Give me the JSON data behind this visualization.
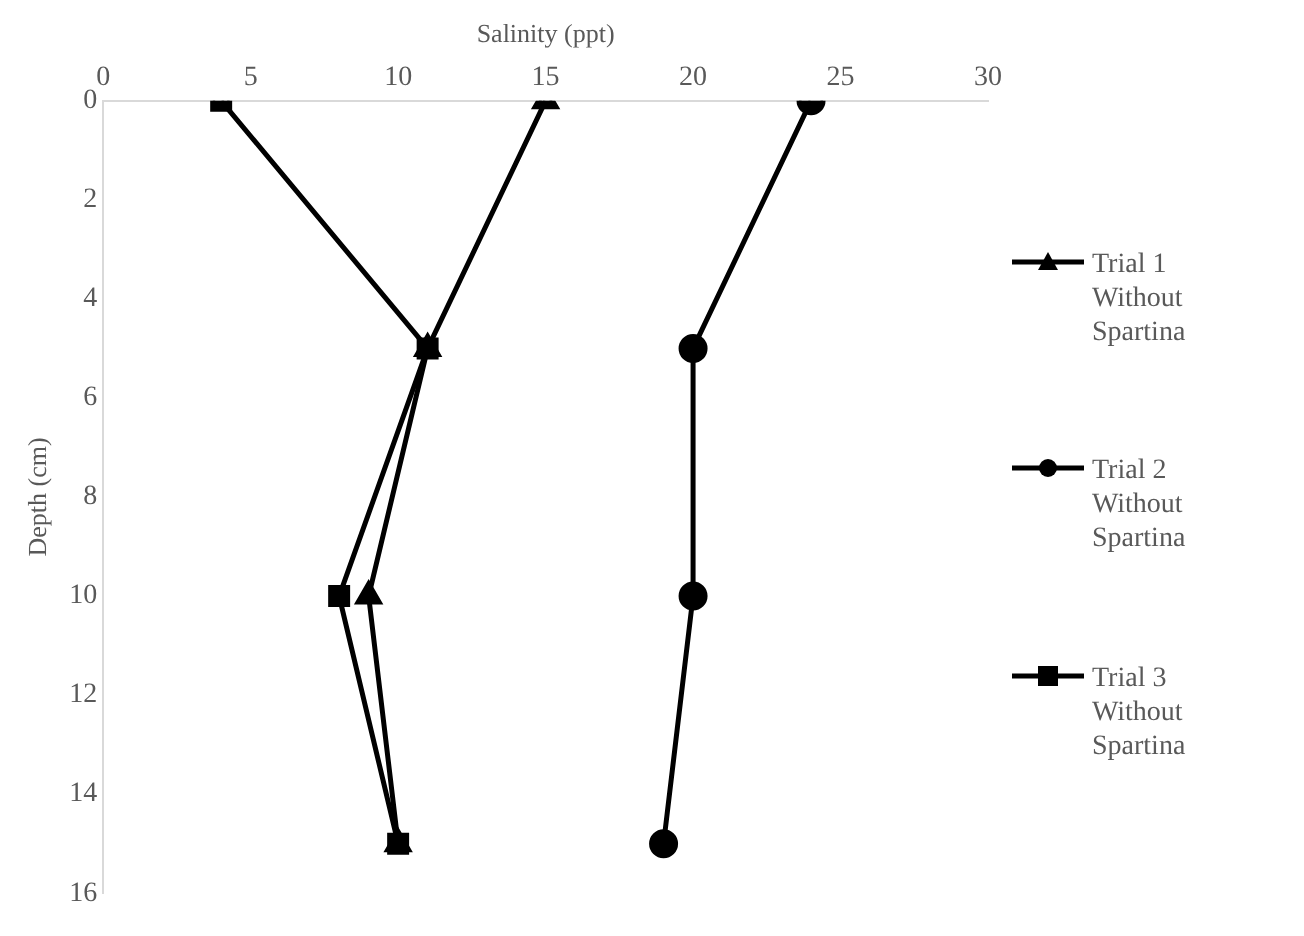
{
  "chart_data": {
    "type": "line",
    "xlabel": "Salinity (ppt)",
    "ylabel": "Depth (cm)",
    "xlim": [
      0,
      30
    ],
    "xticks": [
      0,
      5,
      10,
      15,
      20,
      25,
      30
    ],
    "ylim": [
      16,
      0
    ],
    "yticks": [
      0,
      2,
      4,
      6,
      8,
      10,
      12,
      14,
      16
    ],
    "grid": false,
    "legend": "right",
    "series": [
      {
        "name": "Trial 1 Without Spartina",
        "color": "#000000",
        "marker": "triangle",
        "x": [
          15,
          11,
          9,
          10
        ],
        "values": [
          0,
          5,
          10,
          15
        ]
      },
      {
        "name": "Trial 2 Without Spartina",
        "color": "#000000",
        "marker": "circle",
        "x": [
          24,
          20,
          20,
          19
        ],
        "values": [
          0,
          5,
          10,
          15
        ]
      },
      {
        "name": "Trial 3 Without Spartina",
        "color": "#000000",
        "marker": "square",
        "x": [
          4,
          11,
          8,
          10
        ],
        "values": [
          0,
          5,
          10,
          15
        ]
      }
    ]
  }
}
